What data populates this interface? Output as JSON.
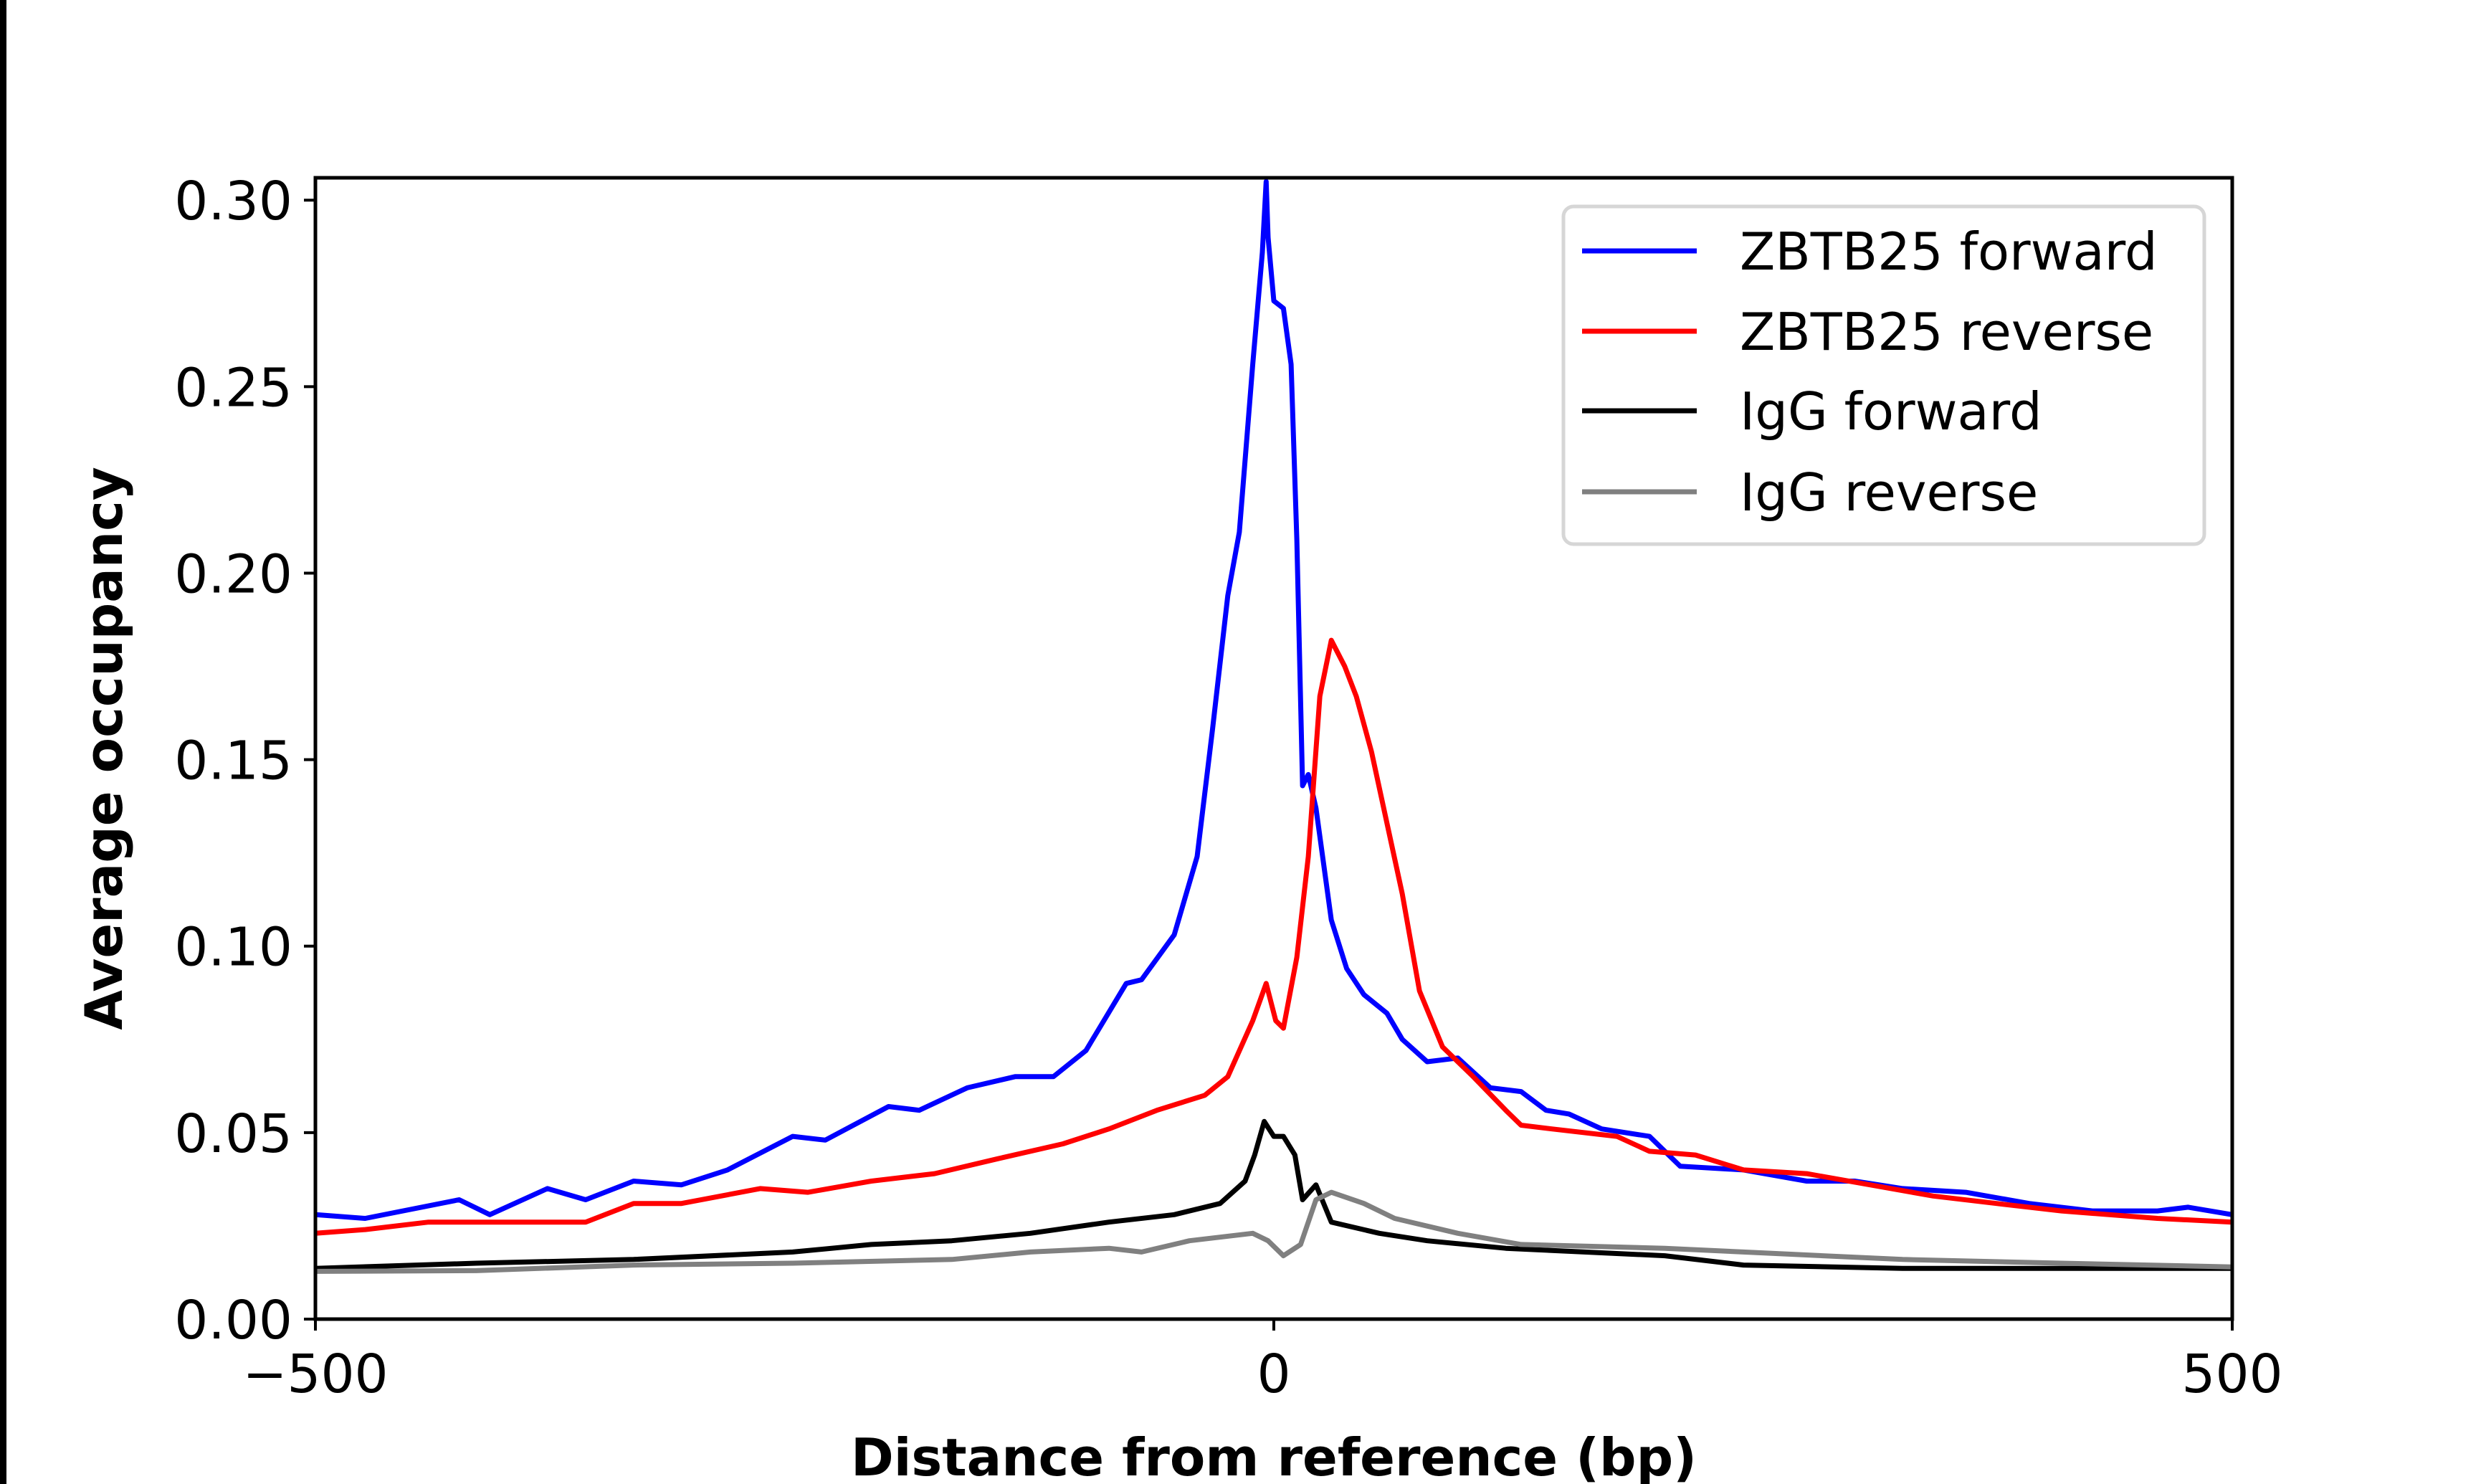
{
  "chart_data": {
    "type": "line",
    "title": "",
    "xlabel": "Distance from reference (bp)",
    "ylabel": "Average occupancy",
    "xlim": [
      -500,
      500
    ],
    "ylim": [
      0,
      0.306
    ],
    "xticks": [
      -500,
      0,
      500
    ],
    "xtick_labels": [
      "−500",
      "0",
      "500"
    ],
    "yticks": [
      0,
      0.05,
      0.1,
      0.15,
      0.2,
      0.25,
      0.3
    ],
    "ytick_labels": [
      "0.00",
      "0.05",
      "0.10",
      "0.15",
      "0.20",
      "0.25",
      "0.30"
    ],
    "grid": false,
    "legend_position": "top-right",
    "series": [
      {
        "name": "ZBTB25 forward",
        "color": "#0000ff",
        "x": [
          -500,
          -474,
          -425,
          -409,
          -379,
          -359,
          -334,
          -309,
          -285,
          -251,
          -234,
          -201,
          -185,
          -160,
          -135,
          -115,
          -98,
          -77,
          -69,
          -52,
          -40,
          -32,
          -24,
          -18,
          -11,
          -6,
          -4,
          -3,
          0,
          5,
          9,
          12,
          15,
          18,
          22,
          30,
          38,
          47,
          59,
          67,
          80,
          96,
          113,
          129,
          142,
          154,
          171,
          196,
          212,
          245,
          278,
          303,
          328,
          361,
          394,
          427,
          461,
          477,
          500
        ],
        "y": [
          0.028,
          0.027,
          0.032,
          0.028,
          0.035,
          0.032,
          0.037,
          0.036,
          0.04,
          0.049,
          0.048,
          0.057,
          0.056,
          0.062,
          0.065,
          0.065,
          0.072,
          0.09,
          0.091,
          0.103,
          0.124,
          0.158,
          0.194,
          0.211,
          0.256,
          0.286,
          0.305,
          0.29,
          0.273,
          0.271,
          0.256,
          0.209,
          0.143,
          0.146,
          0.137,
          0.107,
          0.094,
          0.087,
          0.082,
          0.075,
          0.069,
          0.07,
          0.062,
          0.061,
          0.056,
          0.055,
          0.051,
          0.049,
          0.041,
          0.04,
          0.037,
          0.037,
          0.035,
          0.034,
          0.031,
          0.029,
          0.029,
          0.03,
          0.028
        ]
      },
      {
        "name": "ZBTB25 reverse",
        "color": "#ff0000",
        "x": [
          -500,
          -474,
          -441,
          -392,
          -359,
          -334,
          -309,
          -268,
          -243,
          -210,
          -177,
          -144,
          -110,
          -86,
          -61,
          -36,
          -24,
          -11,
          -4,
          1,
          5,
          12,
          18,
          24,
          30,
          37,
          43,
          51,
          59,
          67,
          76,
          88,
          104,
          121,
          129,
          145,
          179,
          196,
          220,
          245,
          278,
          311,
          344,
          377,
          411,
          461,
          500
        ],
        "y": [
          0.023,
          0.024,
          0.026,
          0.026,
          0.026,
          0.031,
          0.031,
          0.035,
          0.034,
          0.037,
          0.039,
          0.043,
          0.047,
          0.051,
          0.056,
          0.06,
          0.065,
          0.08,
          0.09,
          0.08,
          0.078,
          0.097,
          0.124,
          0.167,
          0.182,
          0.175,
          0.167,
          0.152,
          0.133,
          0.114,
          0.088,
          0.073,
          0.065,
          0.056,
          0.052,
          0.051,
          0.049,
          0.045,
          0.044,
          0.04,
          0.039,
          0.036,
          0.033,
          0.031,
          0.029,
          0.027,
          0.026
        ]
      },
      {
        "name": "IgG forward",
        "color": "#000000",
        "x": [
          -500,
          -416,
          -334,
          -251,
          -210,
          -168,
          -127,
          -86,
          -52,
          -28,
          -15,
          -10,
          -5,
          0,
          5,
          11,
          15,
          22,
          30,
          55,
          80,
          121,
          162,
          204,
          245,
          328,
          411,
          500
        ],
        "y": [
          0.0136,
          0.015,
          0.016,
          0.018,
          0.02,
          0.021,
          0.023,
          0.026,
          0.028,
          0.031,
          0.037,
          0.044,
          0.053,
          0.049,
          0.049,
          0.044,
          0.032,
          0.036,
          0.026,
          0.023,
          0.021,
          0.019,
          0.018,
          0.017,
          0.0145,
          0.0136,
          0.0136,
          0.0136
        ]
      },
      {
        "name": "IgG reverse",
        "color": "#808080",
        "x": [
          -500,
          -416,
          -334,
          -251,
          -168,
          -127,
          -86,
          -69,
          -44,
          -11,
          -3,
          5,
          14,
          22,
          30,
          47,
          63,
          96,
          129,
          204,
          245,
          328,
          411,
          500
        ],
        "y": [
          0.0128,
          0.013,
          0.0145,
          0.015,
          0.016,
          0.018,
          0.019,
          0.018,
          0.021,
          0.023,
          0.021,
          0.017,
          0.02,
          0.032,
          0.034,
          0.031,
          0.027,
          0.023,
          0.02,
          0.019,
          0.018,
          0.016,
          0.015,
          0.014
        ]
      }
    ]
  }
}
